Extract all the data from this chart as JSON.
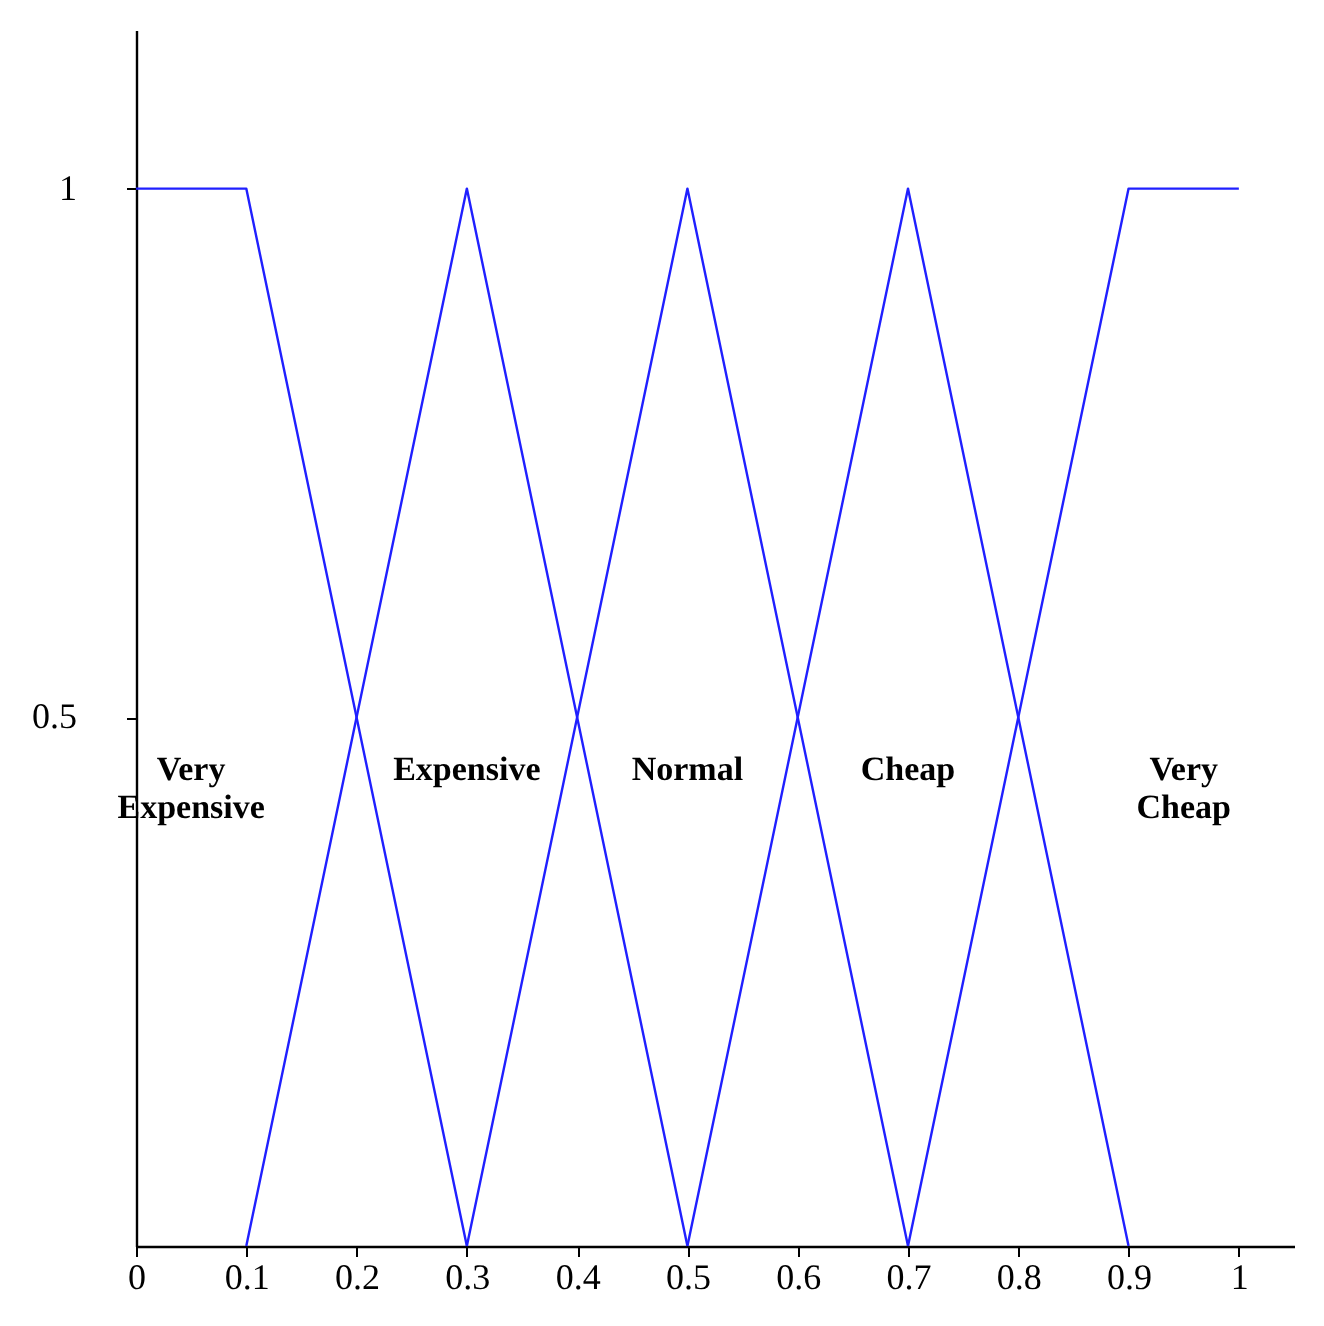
{
  "chart_data": {
    "type": "line",
    "xlim": [
      0,
      1.05
    ],
    "ylim": [
      0,
      1.15
    ],
    "xticks": [
      0,
      0.1,
      0.2,
      0.3,
      0.4,
      0.5,
      0.6,
      0.7,
      0.8,
      0.9,
      1
    ],
    "yticks": [
      0.5,
      1
    ],
    "grid": false,
    "legend": false,
    "marker": "none",
    "line_style": "solid",
    "series": [
      {
        "color": "#2020ff",
        "x": [
          0,
          0.1,
          0.3
        ],
        "values": [
          1,
          1,
          0
        ]
      },
      {
        "color": "#2020ff",
        "x": [
          0.1,
          0.3,
          0.5
        ],
        "values": [
          0,
          1,
          0
        ]
      },
      {
        "color": "#2020ff",
        "x": [
          0.3,
          0.5,
          0.7
        ],
        "values": [
          0,
          1,
          0
        ]
      },
      {
        "color": "#2020ff",
        "x": [
          0.5,
          0.7,
          0.9
        ],
        "values": [
          0,
          1,
          0
        ]
      },
      {
        "color": "#2020ff",
        "x": [
          0.7,
          0.9,
          1.0
        ],
        "values": [
          0,
          1,
          1
        ]
      }
    ],
    "annotations": [
      "Very Expensive",
      "Expensive",
      "Normal",
      "Cheap",
      "Very Cheap"
    ]
  }
}
